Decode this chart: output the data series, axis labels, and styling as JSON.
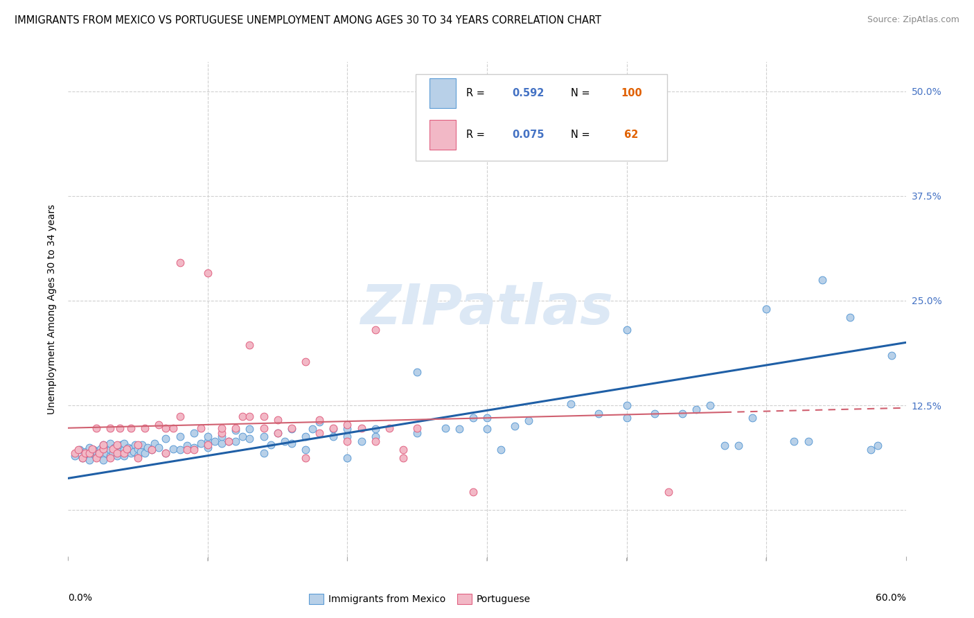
{
  "title": "IMMIGRANTS FROM MEXICO VS PORTUGUESE UNEMPLOYMENT AMONG AGES 30 TO 34 YEARS CORRELATION CHART",
  "source": "Source: ZipAtlas.com",
  "ylabel": "Unemployment Among Ages 30 to 34 years",
  "xlim": [
    0.0,
    0.6
  ],
  "ylim": [
    -0.055,
    0.535
  ],
  "yticks": [
    0.0,
    0.125,
    0.25,
    0.375,
    0.5
  ],
  "ytick_labels": [
    "",
    "12.5%",
    "25.0%",
    "37.5%",
    "50.0%"
  ],
  "blue_color_fill": "#b8d0e8",
  "blue_color_edge": "#5b9bd5",
  "pink_color_fill": "#f2b8c6",
  "pink_color_edge": "#e06080",
  "blue_line_color": "#1f5fa6",
  "pink_line_color": "#d06070",
  "watermark_color": "#dce8f5",
  "grid_color": "#d0d0d0",
  "right_tick_color": "#4472c4",
  "blue_line_x": [
    0.0,
    0.6
  ],
  "blue_line_y": [
    0.038,
    0.2
  ],
  "pink_line_x": [
    0.0,
    0.6
  ],
  "pink_line_y": [
    0.098,
    0.122
  ],
  "blue_scatter": [
    [
      0.005,
      0.065
    ],
    [
      0.008,
      0.072
    ],
    [
      0.01,
      0.062
    ],
    [
      0.012,
      0.07
    ],
    [
      0.013,
      0.068
    ],
    [
      0.015,
      0.06
    ],
    [
      0.015,
      0.075
    ],
    [
      0.017,
      0.068
    ],
    [
      0.018,
      0.072
    ],
    [
      0.02,
      0.065
    ],
    [
      0.02,
      0.07
    ],
    [
      0.022,
      0.068
    ],
    [
      0.023,
      0.073
    ],
    [
      0.025,
      0.06
    ],
    [
      0.025,
      0.072
    ],
    [
      0.025,
      0.078
    ],
    [
      0.027,
      0.068
    ],
    [
      0.028,
      0.075
    ],
    [
      0.03,
      0.065
    ],
    [
      0.03,
      0.072
    ],
    [
      0.03,
      0.08
    ],
    [
      0.032,
      0.068
    ],
    [
      0.033,
      0.075
    ],
    [
      0.035,
      0.065
    ],
    [
      0.035,
      0.072
    ],
    [
      0.037,
      0.07
    ],
    [
      0.038,
      0.078
    ],
    [
      0.04,
      0.065
    ],
    [
      0.04,
      0.072
    ],
    [
      0.04,
      0.08
    ],
    [
      0.042,
      0.07
    ],
    [
      0.043,
      0.075
    ],
    [
      0.045,
      0.068
    ],
    [
      0.045,
      0.073
    ],
    [
      0.047,
      0.07
    ],
    [
      0.048,
      0.078
    ],
    [
      0.05,
      0.065
    ],
    [
      0.05,
      0.073
    ],
    [
      0.052,
      0.07
    ],
    [
      0.053,
      0.078
    ],
    [
      0.055,
      0.068
    ],
    [
      0.057,
      0.075
    ],
    [
      0.06,
      0.072
    ],
    [
      0.062,
      0.08
    ],
    [
      0.065,
      0.075
    ],
    [
      0.07,
      0.068
    ],
    [
      0.07,
      0.085
    ],
    [
      0.075,
      0.073
    ],
    [
      0.08,
      0.072
    ],
    [
      0.08,
      0.088
    ],
    [
      0.085,
      0.077
    ],
    [
      0.09,
      0.075
    ],
    [
      0.09,
      0.092
    ],
    [
      0.095,
      0.08
    ],
    [
      0.1,
      0.075
    ],
    [
      0.1,
      0.082
    ],
    [
      0.1,
      0.088
    ],
    [
      0.105,
      0.082
    ],
    [
      0.11,
      0.08
    ],
    [
      0.11,
      0.088
    ],
    [
      0.115,
      0.082
    ],
    [
      0.12,
      0.082
    ],
    [
      0.12,
      0.095
    ],
    [
      0.125,
      0.088
    ],
    [
      0.13,
      0.085
    ],
    [
      0.13,
      0.097
    ],
    [
      0.14,
      0.068
    ],
    [
      0.14,
      0.088
    ],
    [
      0.145,
      0.078
    ],
    [
      0.15,
      0.092
    ],
    [
      0.155,
      0.082
    ],
    [
      0.16,
      0.08
    ],
    [
      0.16,
      0.097
    ],
    [
      0.17,
      0.072
    ],
    [
      0.17,
      0.088
    ],
    [
      0.175,
      0.097
    ],
    [
      0.18,
      0.105
    ],
    [
      0.19,
      0.088
    ],
    [
      0.19,
      0.097
    ],
    [
      0.2,
      0.062
    ],
    [
      0.2,
      0.088
    ],
    [
      0.2,
      0.097
    ],
    [
      0.21,
      0.082
    ],
    [
      0.22,
      0.088
    ],
    [
      0.22,
      0.097
    ],
    [
      0.25,
      0.092
    ],
    [
      0.25,
      0.165
    ],
    [
      0.27,
      0.098
    ],
    [
      0.28,
      0.097
    ],
    [
      0.29,
      0.11
    ],
    [
      0.3,
      0.097
    ],
    [
      0.3,
      0.11
    ],
    [
      0.31,
      0.072
    ],
    [
      0.32,
      0.1
    ],
    [
      0.33,
      0.107
    ],
    [
      0.36,
      0.127
    ],
    [
      0.38,
      0.115
    ],
    [
      0.4,
      0.11
    ],
    [
      0.4,
      0.125
    ],
    [
      0.4,
      0.215
    ],
    [
      0.42,
      0.115
    ],
    [
      0.44,
      0.115
    ],
    [
      0.45,
      0.12
    ],
    [
      0.46,
      0.125
    ],
    [
      0.47,
      0.077
    ],
    [
      0.48,
      0.077
    ],
    [
      0.49,
      0.11
    ],
    [
      0.5,
      0.24
    ],
    [
      0.52,
      0.082
    ],
    [
      0.53,
      0.082
    ],
    [
      0.54,
      0.275
    ],
    [
      0.56,
      0.23
    ],
    [
      0.575,
      0.072
    ],
    [
      0.58,
      0.077
    ],
    [
      0.59,
      0.185
    ]
  ],
  "pink_scatter": [
    [
      0.005,
      0.068
    ],
    [
      0.007,
      0.072
    ],
    [
      0.01,
      0.062
    ],
    [
      0.012,
      0.068
    ],
    [
      0.015,
      0.068
    ],
    [
      0.017,
      0.073
    ],
    [
      0.02,
      0.062
    ],
    [
      0.02,
      0.098
    ],
    [
      0.022,
      0.068
    ],
    [
      0.025,
      0.073
    ],
    [
      0.025,
      0.078
    ],
    [
      0.03,
      0.062
    ],
    [
      0.03,
      0.098
    ],
    [
      0.032,
      0.073
    ],
    [
      0.035,
      0.068
    ],
    [
      0.035,
      0.078
    ],
    [
      0.037,
      0.098
    ],
    [
      0.04,
      0.068
    ],
    [
      0.042,
      0.073
    ],
    [
      0.045,
      0.098
    ],
    [
      0.05,
      0.062
    ],
    [
      0.05,
      0.078
    ],
    [
      0.055,
      0.098
    ],
    [
      0.06,
      0.072
    ],
    [
      0.065,
      0.102
    ],
    [
      0.07,
      0.068
    ],
    [
      0.07,
      0.098
    ],
    [
      0.075,
      0.098
    ],
    [
      0.08,
      0.112
    ],
    [
      0.08,
      0.295
    ],
    [
      0.085,
      0.072
    ],
    [
      0.09,
      0.072
    ],
    [
      0.095,
      0.098
    ],
    [
      0.1,
      0.078
    ],
    [
      0.1,
      0.283
    ],
    [
      0.11,
      0.092
    ],
    [
      0.11,
      0.098
    ],
    [
      0.115,
      0.082
    ],
    [
      0.12,
      0.098
    ],
    [
      0.125,
      0.112
    ],
    [
      0.13,
      0.112
    ],
    [
      0.13,
      0.197
    ],
    [
      0.14,
      0.098
    ],
    [
      0.14,
      0.112
    ],
    [
      0.15,
      0.092
    ],
    [
      0.15,
      0.108
    ],
    [
      0.16,
      0.098
    ],
    [
      0.17,
      0.062
    ],
    [
      0.17,
      0.177
    ],
    [
      0.18,
      0.092
    ],
    [
      0.18,
      0.108
    ],
    [
      0.19,
      0.098
    ],
    [
      0.2,
      0.082
    ],
    [
      0.2,
      0.102
    ],
    [
      0.21,
      0.098
    ],
    [
      0.22,
      0.082
    ],
    [
      0.22,
      0.215
    ],
    [
      0.23,
      0.098
    ],
    [
      0.24,
      0.072
    ],
    [
      0.24,
      0.062
    ],
    [
      0.25,
      0.098
    ],
    [
      0.29,
      0.022
    ],
    [
      0.43,
      0.022
    ]
  ]
}
